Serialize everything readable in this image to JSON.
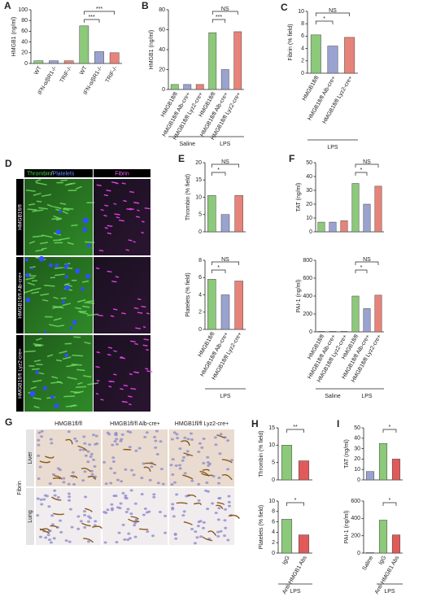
{
  "chart_data": [
    {
      "type": "bar",
      "panel": "A",
      "ylabel": "HMGB1 (ng/ml)",
      "ylim": [
        0,
        100
      ],
      "yticks": [
        0,
        20,
        40,
        60,
        80,
        100
      ],
      "categories": [
        "WT",
        "IFN-α/βR1-/-",
        "TRIF-/-",
        "WT",
        "IFN-α/βR1-/-",
        "TRIF-/-"
      ],
      "values": [
        5,
        5,
        5,
        70,
        22,
        20
      ],
      "colors": [
        "#8cc97a",
        "#9aa3cf",
        "#e8837a",
        "#8cc97a",
        "#9aa3cf",
        "#e8837a"
      ],
      "sig": [
        {
          "label": "***",
          "from": 3,
          "to": 5
        },
        {
          "label": "***",
          "from": 3,
          "to": 4
        }
      ]
    },
    {
      "type": "bar",
      "panel": "B",
      "ylabel": "HMGB1 (ng/ml)",
      "ylim": [
        0,
        80
      ],
      "yticks": [
        0,
        20,
        40,
        60,
        80
      ],
      "categories": [
        "HMGB1fl/fl",
        "HMGB1fl/fl Alb-cre+",
        "HMGB1fl/fl Lyz2-cre+",
        "HMGB1fl/fl",
        "HMGB1fl/fl Alb-cre+",
        "HMGB1fl/fl Lyz2-cre+"
      ],
      "values": [
        5,
        5,
        5,
        57,
        20,
        58
      ],
      "colors": [
        "#8cc97a",
        "#9aa3cf",
        "#e8837a",
        "#8cc97a",
        "#9aa3cf",
        "#e8837a"
      ],
      "sig": [
        {
          "label": "NS",
          "from": 3,
          "to": 5
        },
        {
          "label": "***",
          "from": 3,
          "to": 4
        }
      ],
      "groups": [
        {
          "label": "Saline",
          "from": 0,
          "to": 2
        },
        {
          "label": "LPS",
          "from": 3,
          "to": 5
        }
      ]
    },
    {
      "type": "bar",
      "panel": "C",
      "ylabel": "Fibrin (% field)",
      "ylim": [
        0,
        10
      ],
      "yticks": [
        0,
        2,
        4,
        6,
        8,
        10
      ],
      "categories": [
        "HMGB1fl/fl",
        "HMGB1fl/fl Alb-cre+",
        "HMGB1fl/fl Lyz2-cre+"
      ],
      "values": [
        6.2,
        4.4,
        5.8
      ],
      "colors": [
        "#8cc97a",
        "#9aa3cf",
        "#e8837a"
      ],
      "sig": [
        {
          "label": "NS",
          "from": 0,
          "to": 2
        },
        {
          "label": "*",
          "from": 0,
          "to": 1
        }
      ],
      "groups": [
        {
          "label": "LPS",
          "from": 0,
          "to": 2
        }
      ]
    },
    {
      "type": "bar",
      "panel": "E",
      "ylabel": "Thrombin (% field)",
      "ylim": [
        0,
        20
      ],
      "yticks": [
        0,
        5,
        10,
        15,
        20
      ],
      "categories": [
        null,
        null,
        null
      ],
      "values": [
        10.5,
        5,
        10.5
      ],
      "colors": [
        "#8cc97a",
        "#9aa3cf",
        "#e8837a"
      ],
      "sig": [
        {
          "label": "NS",
          "from": 0,
          "to": 2
        },
        {
          "label": "*",
          "from": 0,
          "to": 1
        }
      ]
    },
    {
      "type": "bar",
      "ylabel": "Platelets (% field)",
      "ylim": [
        0,
        8
      ],
      "yticks": [
        0,
        2,
        4,
        6,
        8
      ],
      "categories": [
        "HMGB1fl/fl",
        "HMGB1fl/fl Alb-cre+",
        "HMGB1fl/fl Lyz2-cre+"
      ],
      "values": [
        5.8,
        4,
        5.6
      ],
      "colors": [
        "#8cc97a",
        "#9aa3cf",
        "#e8837a"
      ],
      "sig": [
        {
          "label": "NS",
          "from": 0,
          "to": 2
        },
        {
          "label": "*",
          "from": 0,
          "to": 1
        }
      ],
      "groups": [
        {
          "label": "LPS",
          "from": 0,
          "to": 2
        }
      ]
    },
    {
      "type": "bar",
      "panel": "F",
      "ylabel": "TAT (ng/ml)",
      "ylim": [
        0,
        50
      ],
      "yticks": [
        0,
        10,
        20,
        30,
        40,
        50
      ],
      "categories": [
        null,
        null,
        null,
        null,
        null,
        null
      ],
      "values": [
        7,
        7,
        8,
        35,
        20,
        33
      ],
      "colors": [
        "#8cc97a",
        "#9aa3cf",
        "#e8837a",
        "#8cc97a",
        "#9aa3cf",
        "#e8837a"
      ],
      "sig": [
        {
          "label": "NS",
          "from": 3,
          "to": 5
        },
        {
          "label": "*",
          "from": 3,
          "to": 4
        }
      ]
    },
    {
      "type": "bar",
      "ylabel": "PAI-1 (ng/ml)",
      "ylim": [
        0,
        800
      ],
      "yticks": [
        0,
        200,
        400,
        600,
        800
      ],
      "categories": [
        "HMGB1fl/fl",
        "HMGB1fl/fl Alb-cre+",
        "HMGB1fl/fl Lyz2-cre+",
        "HMGB1fl/fl",
        "HMGB1fl/fl Alb-cre+",
        "HMGB1fl/fl Lyz2-cre+"
      ],
      "values": [
        5,
        5,
        5,
        400,
        260,
        410
      ],
      "colors": [
        "#8cc97a",
        "#9aa3cf",
        "#e8837a",
        "#8cc97a",
        "#9aa3cf",
        "#e8837a"
      ],
      "sig": [
        {
          "label": "NS",
          "from": 3,
          "to": 5
        },
        {
          "label": "*",
          "from": 3,
          "to": 4
        }
      ],
      "groups": [
        {
          "label": "Saline",
          "from": 0,
          "to": 2
        },
        {
          "label": "LPS",
          "from": 3,
          "to": 5
        }
      ]
    },
    {
      "type": "bar",
      "panel": "H",
      "ylabel": "Thrombin (% field)",
      "ylim": [
        0,
        15
      ],
      "yticks": [
        0,
        5,
        10,
        15
      ],
      "categories": [
        null,
        null
      ],
      "values": [
        10,
        5.5
      ],
      "colors": [
        "#8cc97a",
        "#e05a5a"
      ],
      "sig": [
        {
          "label": "**",
          "from": 0,
          "to": 1
        }
      ]
    },
    {
      "type": "bar",
      "ylabel": "Platelets (% field)",
      "ylim": [
        0,
        10
      ],
      "yticks": [
        0,
        2,
        4,
        6,
        8,
        10
      ],
      "categories": [
        "IgG",
        "Anti-HMGB1 Abs"
      ],
      "values": [
        6.5,
        3.5
      ],
      "colors": [
        "#8cc97a",
        "#e05a5a"
      ],
      "sig": [
        {
          "label": "*",
          "from": 0,
          "to": 1
        }
      ],
      "groups": [
        {
          "label": "LPS",
          "from": 0,
          "to": 1
        }
      ]
    },
    {
      "type": "bar",
      "panel": "I",
      "ylabel": "TAT (ng/ml)",
      "ylim": [
        0,
        50
      ],
      "yticks": [
        0,
        10,
        20,
        30,
        40,
        50
      ],
      "categories": [
        null,
        null,
        null
      ],
      "values": [
        8,
        35,
        20
      ],
      "colors": [
        "#9aa3cf",
        "#8cc97a",
        "#e05a5a"
      ],
      "sig": [
        {
          "label": "*",
          "from": 1,
          "to": 2
        }
      ]
    },
    {
      "type": "bar",
      "ylabel": "PAI-1 (ng/ml)",
      "ylim": [
        0,
        600
      ],
      "yticks": [
        0,
        200,
        400,
        600
      ],
      "categories": [
        "Saline",
        "IgG",
        "Anti-HMGB1 Abs"
      ],
      "values": [
        5,
        380,
        210
      ],
      "colors": [
        "#9aa3cf",
        "#8cc97a",
        "#e05a5a"
      ],
      "sig": [
        {
          "label": "*",
          "from": 1,
          "to": 2
        }
      ],
      "groups": [
        {
          "label": "LPS",
          "from": 1,
          "to": 2
        }
      ]
    }
  ],
  "panel_d": {
    "letter": "D",
    "header_green": "Thrombin",
    "header_slash": "/",
    "header_blue": "Platelets",
    "header_fibrin": "Fibrin",
    "rows": [
      "HMGB1fl/fl",
      "HMGB1fl/fl Alb-cre+",
      "HMGB1fl/fl Lyz2-cre+"
    ]
  },
  "panel_g": {
    "letter": "G",
    "columns": [
      "HMGB1fl/fl",
      "HMGB1fl/fl Alb-cre+",
      "HMGB1fl/fl Lyz2-cre+"
    ],
    "rows": [
      "Liver",
      "Lung"
    ],
    "side": "Fibrin"
  }
}
